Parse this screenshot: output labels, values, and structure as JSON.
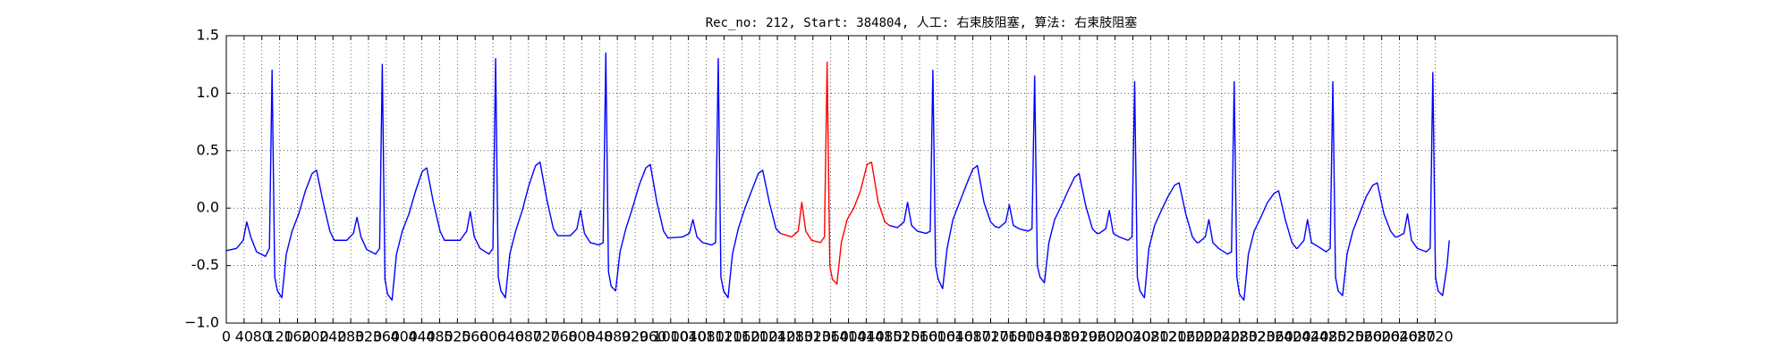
{
  "chart_data": {
    "type": "line",
    "title": "Rec_no: 212, Start: 384804, 人工: 右束肢阻塞, 算法: 右束肢阻塞",
    "xlim": [
      0,
      3130
    ],
    "xticks": [
      0,
      40,
      80,
      120,
      160,
      200,
      240,
      280,
      320,
      360,
      400,
      440,
      480,
      520,
      560,
      600,
      640,
      680,
      720,
      760,
      800,
      840,
      880,
      920,
      960,
      1000,
      1040,
      1080,
      1120,
      1160,
      1200,
      1240,
      1280,
      1320,
      1360,
      1400,
      1440,
      1480,
      1520,
      1560,
      1600,
      1640,
      1680,
      1720,
      1760,
      1800,
      1840,
      1880,
      1920,
      1960,
      2000,
      2040,
      2080,
      2120,
      2160,
      2200,
      2240,
      2280,
      2320,
      2360,
      2400,
      2440,
      2480,
      2520,
      2560,
      2600,
      2640,
      2680,
      2720
    ],
    "ylim": [
      -1.0,
      1.5
    ],
    "yticks": [
      {
        "value": -1.0,
        "label": "−1.0"
      },
      -0.5,
      {
        "value": 0.0,
        "label": "0.0"
      },
      0.5,
      {
        "value": 1.0,
        "label": "1.0"
      },
      1.5
    ],
    "grid": true,
    "series": [
      {
        "color": "#0000ff",
        "x": [
          0,
          12,
          23,
          38,
          46,
          55,
          68,
          88,
          97,
          103,
          109,
          115,
          125,
          135,
          148,
          163,
          178,
          193,
          203,
          218,
          233,
          243,
          271,
          286,
          294,
          303,
          316,
          336,
          345,
          351,
          357,
          363,
          373,
          383,
          396,
          411,
          426,
          441,
          451,
          466,
          481,
          491,
          526,
          541,
          549,
          558,
          571,
          591,
          600,
          606,
          612,
          618,
          628,
          638,
          651,
          666,
          681,
          696,
          706,
          721,
          736,
          746,
          774,
          789,
          797,
          806,
          819,
          839,
          848,
          854,
          860,
          866,
          876,
          886,
          899,
          914,
          929,
          944,
          954,
          969,
          984,
          994,
          1027,
          1042,
          1050,
          1059,
          1072,
          1092,
          1101,
          1107,
          1113,
          1119,
          1129,
          1139,
          1152,
          1167,
          1182,
          1197,
          1207,
          1222,
          1237,
          1247
        ],
        "values": [
          -0.37,
          -0.36,
          -0.35,
          -0.28,
          -0.12,
          -0.25,
          -0.38,
          -0.42,
          -0.35,
          1.2,
          -0.6,
          -0.72,
          -0.78,
          -0.4,
          -0.2,
          -0.05,
          0.15,
          0.3,
          0.33,
          0.05,
          -0.2,
          -0.28,
          -0.28,
          -0.22,
          -0.08,
          -0.25,
          -0.36,
          -0.4,
          -0.35,
          1.25,
          -0.62,
          -0.75,
          -0.8,
          -0.4,
          -0.2,
          -0.05,
          0.15,
          0.32,
          0.35,
          0.05,
          -0.2,
          -0.28,
          -0.28,
          -0.2,
          -0.03,
          -0.25,
          -0.35,
          -0.4,
          -0.35,
          1.3,
          -0.6,
          -0.72,
          -0.78,
          -0.4,
          -0.2,
          -0.02,
          0.2,
          0.37,
          0.4,
          0.08,
          -0.18,
          -0.24,
          -0.24,
          -0.18,
          -0.02,
          -0.22,
          -0.3,
          -0.32,
          -0.3,
          1.35,
          -0.55,
          -0.68,
          -0.72,
          -0.38,
          -0.18,
          0.0,
          0.2,
          0.35,
          0.38,
          0.05,
          -0.2,
          -0.26,
          -0.25,
          -0.22,
          -0.1,
          -0.25,
          -0.3,
          -0.32,
          -0.3,
          1.3,
          -0.6,
          -0.72,
          -0.78,
          -0.4,
          -0.18,
          0.0,
          0.15,
          0.3,
          0.33,
          0.05,
          -0.18,
          -0.22
        ]
      },
      {
        "color": "#ff0000",
        "x": [
          1247,
          1272,
          1287,
          1295,
          1304,
          1317,
          1337,
          1346,
          1352,
          1358,
          1364,
          1374,
          1384,
          1397,
          1412,
          1427,
          1442,
          1452,
          1467,
          1482,
          1492
        ],
        "values": [
          -0.22,
          -0.25,
          -0.2,
          0.05,
          -0.2,
          -0.28,
          -0.3,
          -0.25,
          1.27,
          -0.5,
          -0.62,
          -0.66,
          -0.3,
          -0.1,
          0.0,
          0.15,
          0.38,
          0.4,
          0.05,
          -0.12,
          -0.15
        ]
      },
      {
        "color": "#0000ff",
        "x": [
          1492,
          1510,
          1525,
          1533,
          1542,
          1555,
          1575,
          1584,
          1590,
          1596,
          1602,
          1612,
          1622,
          1635,
          1650,
          1665,
          1680,
          1690,
          1705,
          1720,
          1730,
          1739,
          1754,
          1762,
          1771,
          1784,
          1804,
          1813,
          1819,
          1825,
          1831,
          1841,
          1851,
          1864,
          1879,
          1894,
          1909,
          1919,
          1934,
          1949,
          1959,
          1964,
          1979,
          1987,
          1996,
          2009,
          2029,
          2038,
          2044,
          2050,
          2056,
          2066,
          2076,
          2089,
          2104,
          2119,
          2134,
          2144,
          2159,
          2174,
          2184,
          2188,
          2203,
          2211,
          2220,
          2233,
          2253,
          2262,
          2268,
          2274,
          2280,
          2290,
          2300,
          2313,
          2328,
          2343,
          2358,
          2368,
          2383,
          2398,
          2408,
          2410,
          2425,
          2433,
          2442,
          2455,
          2475,
          2484,
          2490,
          2496,
          2502,
          2512,
          2522,
          2535,
          2550,
          2565,
          2580,
          2590,
          2605,
          2620,
          2630,
          2635,
          2650,
          2658,
          2667,
          2680,
          2700,
          2709,
          2715,
          2721,
          2727,
          2737,
          2747,
          2752
        ],
        "values": [
          -0.15,
          -0.17,
          -0.12,
          0.05,
          -0.15,
          -0.2,
          -0.22,
          -0.2,
          1.2,
          -0.5,
          -0.62,
          -0.7,
          -0.35,
          -0.1,
          0.05,
          0.2,
          0.34,
          0.37,
          0.05,
          -0.12,
          -0.16,
          -0.17,
          -0.12,
          0.03,
          -0.15,
          -0.18,
          -0.2,
          -0.18,
          1.15,
          -0.5,
          -0.6,
          -0.65,
          -0.3,
          -0.1,
          0.02,
          0.15,
          0.27,
          0.3,
          0.02,
          -0.18,
          -0.22,
          -0.22,
          -0.18,
          -0.02,
          -0.22,
          -0.25,
          -0.28,
          -0.25,
          1.1,
          -0.6,
          -0.72,
          -0.78,
          -0.35,
          -0.15,
          -0.02,
          0.1,
          0.2,
          0.22,
          -0.05,
          -0.25,
          -0.3,
          -0.3,
          -0.25,
          -0.1,
          -0.3,
          -0.35,
          -0.4,
          -0.38,
          1.1,
          -0.6,
          -0.75,
          -0.8,
          -0.4,
          -0.2,
          -0.08,
          0.05,
          0.13,
          0.15,
          -0.1,
          -0.3,
          -0.35,
          -0.35,
          -0.28,
          -0.1,
          -0.3,
          -0.33,
          -0.38,
          -0.35,
          1.1,
          -0.6,
          -0.72,
          -0.76,
          -0.4,
          -0.2,
          -0.05,
          0.1,
          0.2,
          0.22,
          -0.05,
          -0.2,
          -0.25,
          -0.25,
          -0.22,
          -0.05,
          -0.28,
          -0.35,
          -0.38,
          -0.35,
          1.18,
          -0.6,
          -0.72,
          -0.76,
          -0.5,
          -0.28
        ]
      }
    ]
  }
}
